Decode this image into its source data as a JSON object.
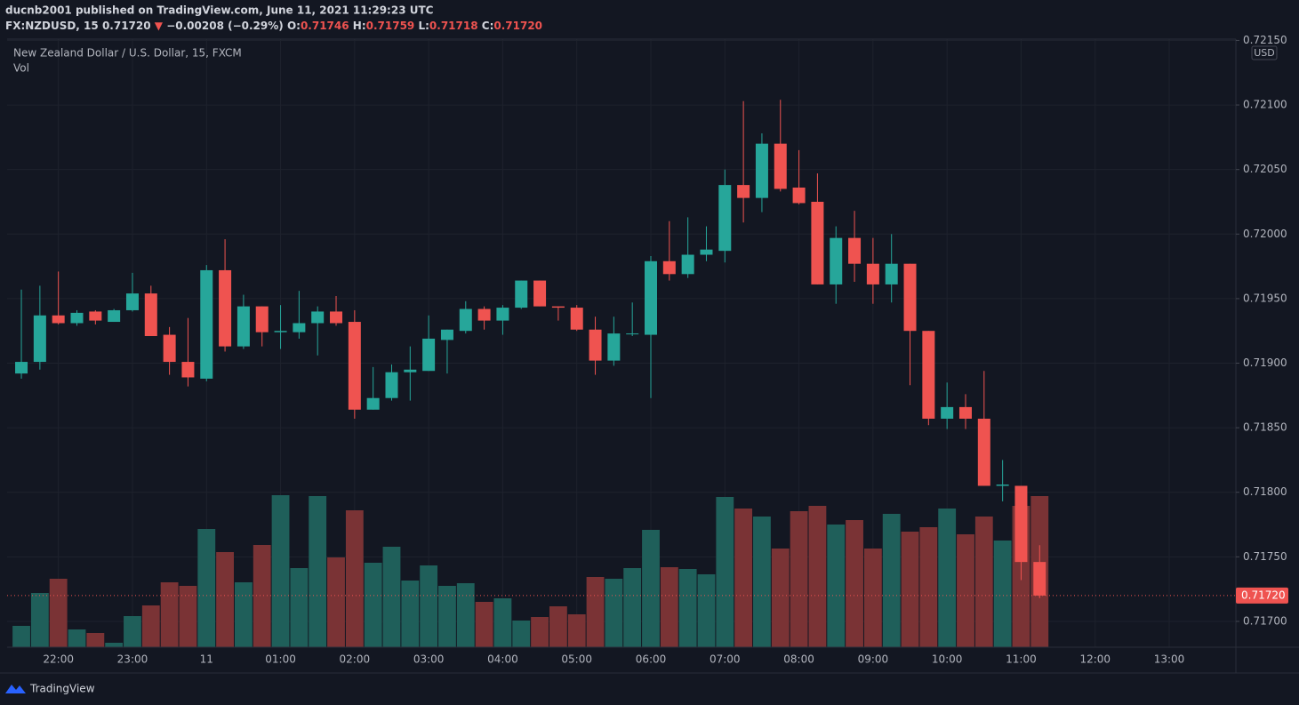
{
  "header": {
    "published": "ducnb2001 published on TradingView.com, June 11, 2021 11:29:23 UTC",
    "symbol": "FX:NZDUSD, 15",
    "last": "0.71720",
    "arrow": "▼",
    "change": "−0.00208 (−0.29%)",
    "o_label": "O:",
    "o": "0.71746",
    "h_label": "H:",
    "h": "0.71759",
    "l_label": "L:",
    "l": "0.71718",
    "c_label": "C:",
    "c": "0.71720"
  },
  "footer": {
    "brand": "TradingView"
  },
  "chart_data": {
    "type": "candlestick",
    "title": "New Zealand Dollar / U.S. Dollar, 15, FXCM",
    "volume_label": "Vol",
    "currency": "USD",
    "up_color": "#26a69a",
    "down_color": "#ef5350",
    "volume_up_color": "#1f5f5a",
    "volume_down_color": "#7a3335",
    "open": [
      0.71892,
      0.71901,
      0.71937,
      0.71931,
      0.7194,
      0.71932,
      0.71941,
      0.71954,
      0.71922,
      0.71901,
      0.71888,
      0.71972,
      0.71913,
      0.71944,
      0.71924,
      0.71924,
      0.71931,
      0.7194,
      0.71932,
      0.71864,
      0.71873,
      0.71893,
      0.71894,
      0.71918,
      0.71925,
      0.71942,
      0.71933,
      0.71943,
      0.71964,
      0.71944,
      0.71943,
      0.71926,
      0.71902,
      0.71923,
      0.71922,
      0.71979,
      0.71969,
      0.71984,
      0.71987,
      0.72038,
      0.72028,
      0.7207,
      0.72036,
      0.72025,
      0.71961,
      0.71997,
      0.71977,
      0.71961,
      0.71977,
      0.71925,
      0.71857,
      0.71866,
      0.71857,
      0.71805,
      0.71805,
      0.71746
    ],
    "high": [
      0.71957,
      0.7196,
      0.71971,
      0.71941,
      0.71941,
      0.71942,
      0.7197,
      0.7196,
      0.71928,
      0.71935,
      0.71976,
      0.71996,
      0.71953,
      0.71944,
      0.71945,
      0.71956,
      0.71944,
      0.71952,
      0.71941,
      0.71897,
      0.71899,
      0.71913,
      0.71937,
      0.71926,
      0.71948,
      0.71944,
      0.71945,
      0.71964,
      0.71964,
      0.71944,
      0.71945,
      0.71936,
      0.71936,
      0.71947,
      0.71983,
      0.7201,
      0.72013,
      0.72006,
      0.7205,
      0.72103,
      0.72078,
      0.72104,
      0.72065,
      0.72047,
      0.72006,
      0.72018,
      0.71997,
      0.72,
      0.71977,
      0.71925,
      0.71885,
      0.71876,
      0.71894,
      0.71825,
      0.71805,
      0.71759
    ],
    "low": [
      0.71888,
      0.71895,
      0.7193,
      0.71929,
      0.7193,
      0.71932,
      0.7194,
      0.71921,
      0.71891,
      0.71882,
      0.71886,
      0.71909,
      0.71911,
      0.71913,
      0.71911,
      0.71919,
      0.71906,
      0.71929,
      0.71857,
      0.71864,
      0.71871,
      0.71871,
      0.71894,
      0.71892,
      0.71923,
      0.71926,
      0.71922,
      0.71942,
      0.71944,
      0.71933,
      0.71925,
      0.71891,
      0.71898,
      0.71921,
      0.71873,
      0.71964,
      0.71966,
      0.71979,
      0.71978,
      0.72009,
      0.72017,
      0.72033,
      0.72023,
      0.71961,
      0.71946,
      0.71963,
      0.71946,
      0.71947,
      0.71883,
      0.71852,
      0.71849,
      0.71849,
      0.71805,
      0.71793,
      0.71732,
      0.71718
    ],
    "close": [
      0.71901,
      0.71937,
      0.71931,
      0.71939,
      0.71933,
      0.71941,
      0.71954,
      0.71921,
      0.71901,
      0.71889,
      0.71972,
      0.71913,
      0.71944,
      0.71924,
      0.71925,
      0.71931,
      0.7194,
      0.71931,
      0.71864,
      0.71873,
      0.71893,
      0.71895,
      0.71919,
      0.71926,
      0.71942,
      0.71933,
      0.71943,
      0.71964,
      0.71944,
      0.71943,
      0.71926,
      0.71902,
      0.71923,
      0.71923,
      0.71979,
      0.71969,
      0.71984,
      0.71988,
      0.72038,
      0.72028,
      0.7207,
      0.72035,
      0.72024,
      0.71961,
      0.71997,
      0.71977,
      0.71961,
      0.71977,
      0.71925,
      0.71857,
      0.71866,
      0.71857,
      0.71805,
      0.71806,
      0.71746,
      0.7172
    ],
    "volume": [
      24,
      61,
      77,
      20,
      16,
      5,
      35,
      47,
      73,
      69,
      133,
      107,
      73,
      115,
      171,
      89,
      170,
      101,
      154,
      95,
      113,
      75,
      92,
      69,
      72,
      51,
      55,
      30,
      34,
      46,
      37,
      79,
      77,
      89,
      132,
      90,
      88,
      82,
      169,
      156,
      147,
      111,
      153,
      159,
      138,
      143,
      111,
      150,
      130,
      135,
      156,
      127,
      147,
      120,
      159,
      170
    ],
    "xlim": [
      -0.77,
      65.6
    ],
    "xticks": [
      {
        "value": 2,
        "label": "22:00"
      },
      {
        "value": 6,
        "label": "23:00"
      },
      {
        "value": 10,
        "label": "11"
      },
      {
        "value": 14,
        "label": "01:00"
      },
      {
        "value": 18,
        "label": "02:00"
      },
      {
        "value": 22,
        "label": "03:00"
      },
      {
        "value": 26,
        "label": "04:00"
      },
      {
        "value": 30,
        "label": "05:00"
      },
      {
        "value": 34,
        "label": "06:00"
      },
      {
        "value": 38,
        "label": "07:00"
      },
      {
        "value": 42,
        "label": "08:00"
      },
      {
        "value": 46,
        "label": "09:00"
      },
      {
        "value": 50,
        "label": "10:00"
      },
      {
        "value": 54,
        "label": "11:00"
      },
      {
        "value": 58,
        "label": "12:00"
      },
      {
        "value": 62,
        "label": "13:00"
      }
    ],
    "ylim": [
      0.7168,
      0.72151
    ],
    "yticks": [
      {
        "value": 0.717,
        "label": "0.71700"
      },
      {
        "value": 0.7175,
        "label": "0.71750"
      },
      {
        "value": 0.718,
        "label": "0.71800"
      },
      {
        "value": 0.7185,
        "label": "0.71850"
      },
      {
        "value": 0.719,
        "label": "0.71900"
      },
      {
        "value": 0.7195,
        "label": "0.71950"
      },
      {
        "value": 0.72,
        "label": "0.72000"
      },
      {
        "value": 0.7205,
        "label": "0.72050"
      },
      {
        "value": 0.721,
        "label": "0.72100"
      },
      {
        "value": 0.7215,
        "label": "0.72150"
      }
    ],
    "last_price": {
      "value": 0.7172,
      "label": "0.71720"
    },
    "grid": true
  }
}
